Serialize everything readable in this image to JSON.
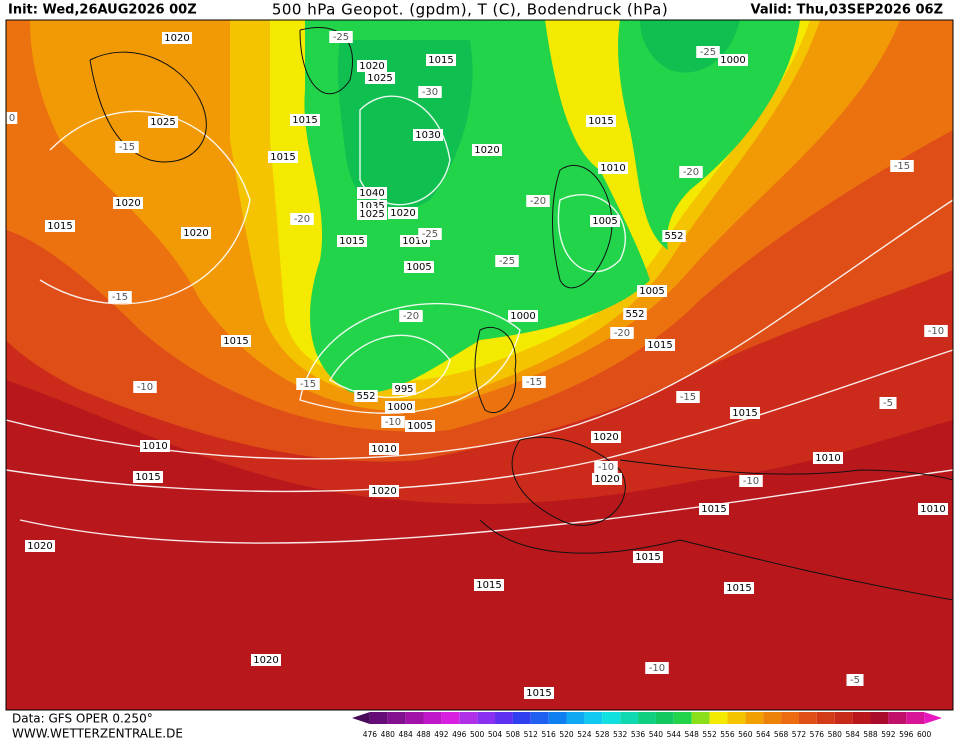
{
  "header": {
    "init": "Init: Wed,26AUG2026 00Z",
    "title": "500 hPa Geopot. (gpdm), T (C), Bodendruck (hPa)",
    "valid": "Valid: Thu,03SEP2026 06Z"
  },
  "map": {
    "pressure_labels": [
      "1020",
      "1015",
      "1020",
      "1025",
      "1000",
      "1025",
      "1015",
      "1015",
      "1030",
      "1015",
      "1020",
      "1010",
      "1040",
      "1035",
      "1025",
      "1020",
      "1020",
      "1015",
      "1020",
      "1015",
      "1010",
      "1005",
      "552",
      "1005",
      "1005",
      "1000",
      "552",
      "1015",
      "1015",
      "995",
      "552",
      "1000",
      "1005",
      "1010",
      "1010",
      "1020",
      "1015",
      "1015",
      "1020",
      "1020",
      "1010",
      "1015",
      "1010",
      "1020",
      "1015",
      "1015",
      "1015",
      "1020",
      "1015"
    ],
    "temperature_labels": [
      "-25",
      "-30",
      "-25",
      "-15",
      "-20",
      "-20",
      "-20",
      "-25",
      "-25",
      "-15",
      "-20",
      "-20",
      "-10",
      "-15",
      "-15",
      "-10",
      "-10",
      "-15",
      "-5",
      "-10",
      "-10",
      "-15",
      "-10",
      "-5",
      "0"
    ]
  },
  "legend": {
    "ticks": [
      476,
      480,
      484,
      488,
      492,
      496,
      500,
      504,
      508,
      512,
      516,
      520,
      524,
      528,
      532,
      536,
      540,
      544,
      548,
      552,
      556,
      560,
      564,
      568,
      572,
      576,
      580,
      584,
      588,
      592,
      596,
      600
    ]
  },
  "footer": {
    "data": "Data: GFS OPER 0.250°",
    "site": "WWW.WETTERZENTRALE.DE"
  }
}
